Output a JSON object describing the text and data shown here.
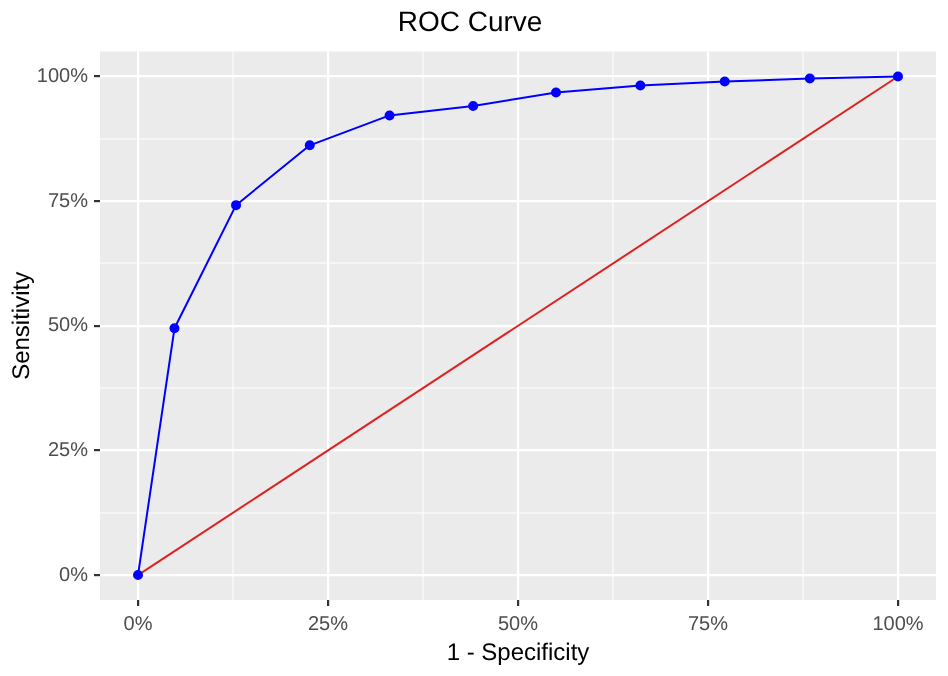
{
  "chart_data": {
    "type": "line",
    "title": "ROC Curve",
    "xlabel": "1 - Specificity",
    "ylabel": "Sensitivity",
    "series": [
      {
        "color": "#0000ff",
        "marker": "circle",
        "x": [
          0,
          4.8,
          12.9,
          22.6,
          33.1,
          44.1,
          55.0,
          66.1,
          77.2,
          88.4,
          100
        ],
        "values": [
          0,
          49.5,
          74.2,
          86.2,
          92.2,
          94.1,
          96.8,
          98.2,
          99.0,
          99.6,
          100
        ]
      },
      {
        "color": "#dd2222",
        "marker": "none",
        "x": [
          0,
          100
        ],
        "values": [
          0,
          100
        ]
      }
    ],
    "xlim": [
      -5,
      105
    ],
    "ylim": [
      -5,
      105
    ],
    "xticks": [
      {
        "value": 0,
        "label": "0%"
      },
      {
        "value": 12.5,
        "label": null
      },
      {
        "value": 25,
        "label": "25%"
      },
      {
        "value": 37.5,
        "label": null
      },
      {
        "value": 50,
        "label": "50%"
      },
      {
        "value": 62.5,
        "label": null
      },
      {
        "value": 75,
        "label": "75%"
      },
      {
        "value": 87.5,
        "label": null
      },
      {
        "value": 100,
        "label": "100%"
      }
    ],
    "yticks": [
      {
        "value": 0,
        "label": "0%"
      },
      {
        "value": 12.5,
        "label": null
      },
      {
        "value": 25,
        "label": "25%"
      },
      {
        "value": 37.5,
        "label": null
      },
      {
        "value": 50,
        "label": "50%"
      },
      {
        "value": 62.5,
        "label": null
      },
      {
        "value": 75,
        "label": "75%"
      },
      {
        "value": 87.5,
        "label": null
      },
      {
        "value": 100,
        "label": "100%"
      }
    ],
    "grid": true,
    "legend": false
  }
}
